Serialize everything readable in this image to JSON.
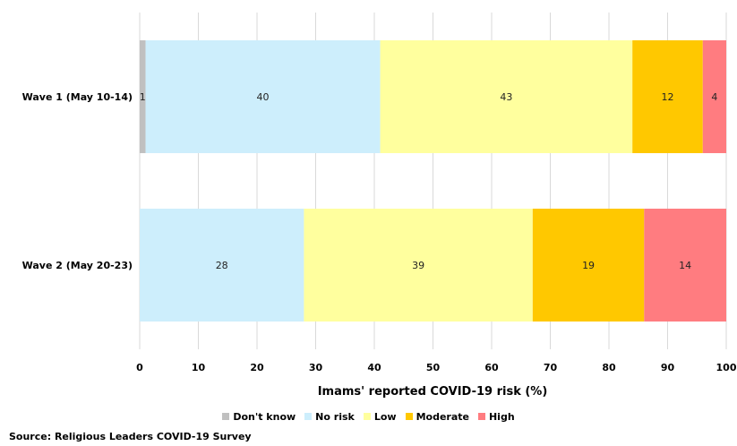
{
  "chart_data": {
    "type": "bar",
    "orientation": "horizontal",
    "stacked": true,
    "categories": [
      "Wave 1 (May 10-14)",
      "Wave 2 (May 20-23)"
    ],
    "series": [
      {
        "name": "Don't know",
        "values": [
          1,
          0
        ],
        "labels": [
          "1",
          "0"
        ],
        "color": "#c0c0c0"
      },
      {
        "name": "No risk",
        "values": [
          40,
          28
        ],
        "labels": [
          "40",
          "28"
        ],
        "color": "#cdeefc"
      },
      {
        "name": "Low",
        "values": [
          43,
          39
        ],
        "labels": [
          "43",
          "39"
        ],
        "color": "#ffff9e"
      },
      {
        "name": "Moderate",
        "values": [
          12,
          19
        ],
        "labels": [
          "12",
          "19"
        ],
        "color": "#ffc800"
      },
      {
        "name": "High",
        "values": [
          4,
          14
        ],
        "labels": [
          "4",
          "14"
        ],
        "color": "#ff7c80"
      }
    ],
    "xlabel": "Imams' reported COVID-19 risk (%)",
    "xlim": [
      0,
      100
    ],
    "xticks": [
      0,
      10,
      20,
      30,
      40,
      50,
      60,
      70,
      80,
      90,
      100
    ],
    "grid": true,
    "legend_position": "bottom"
  },
  "source": "Source:  Religious Leaders COVID-19 Survey"
}
